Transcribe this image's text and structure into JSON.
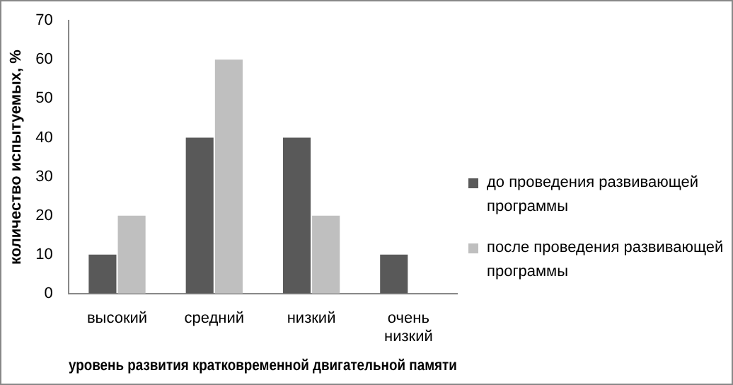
{
  "chart_data": {
    "type": "bar",
    "xlabel": "уровень развития кратковременной двигательной памяти",
    "ylabel": "количество испытуемых, %",
    "categories": [
      "высокий",
      "средний",
      "низкий",
      "очень низкий"
    ],
    "series": [
      {
        "name": "до проведения развивающей программы",
        "color": "#595959",
        "values": [
          10,
          40,
          40,
          10
        ]
      },
      {
        "name": "после проведения развивающей программы",
        "color": "#bfbfbf",
        "values": [
          20,
          60,
          20,
          0
        ]
      }
    ],
    "ylim": [
      0,
      70
    ],
    "yticks": [
      0,
      10,
      20,
      30,
      40,
      50,
      60,
      70
    ],
    "grid": false,
    "legend": "right"
  }
}
